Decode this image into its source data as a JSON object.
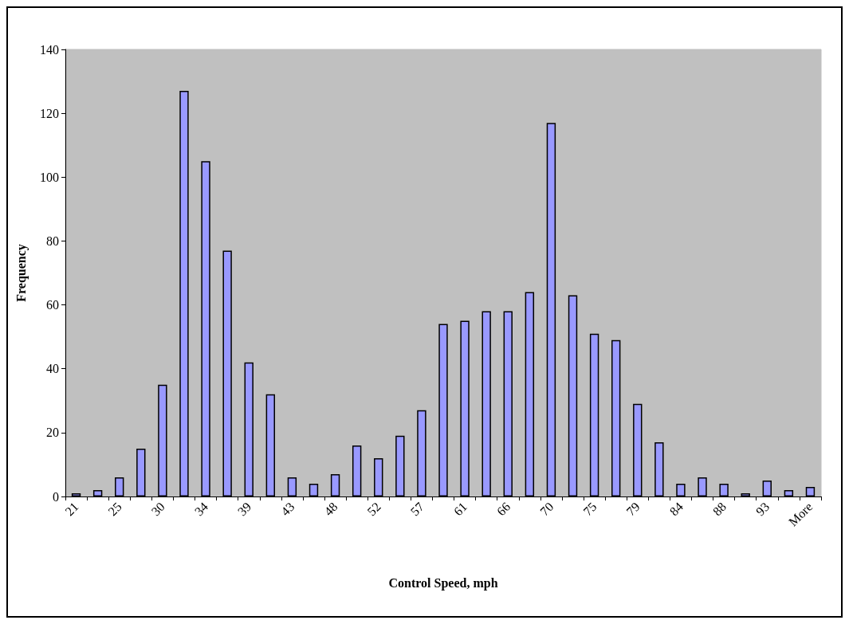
{
  "chart_data": {
    "type": "bar",
    "xlabel": "Control Speed, mph",
    "ylabel": "Frequency",
    "categories": [
      "21",
      null,
      "25",
      null,
      "30",
      null,
      "34",
      null,
      "39",
      null,
      "43",
      null,
      "48",
      null,
      "52",
      null,
      "57",
      null,
      "61",
      null,
      "66",
      null,
      "70",
      null,
      "75",
      null,
      "79",
      null,
      "84",
      null,
      "88",
      null,
      "93",
      null,
      "More"
    ],
    "values": [
      1,
      2,
      6,
      15,
      35,
      127,
      105,
      77,
      42,
      32,
      6,
      4,
      7,
      16,
      12,
      19,
      27,
      54,
      55,
      58,
      58,
      64,
      117,
      63,
      51,
      49,
      29,
      17,
      4,
      6,
      4,
      1,
      5,
      2,
      3
    ],
    "color": "#9999ff",
    "ylim": [
      0,
      140
    ],
    "yticks": [
      0,
      20,
      40,
      60,
      80,
      100,
      120,
      140
    ]
  }
}
